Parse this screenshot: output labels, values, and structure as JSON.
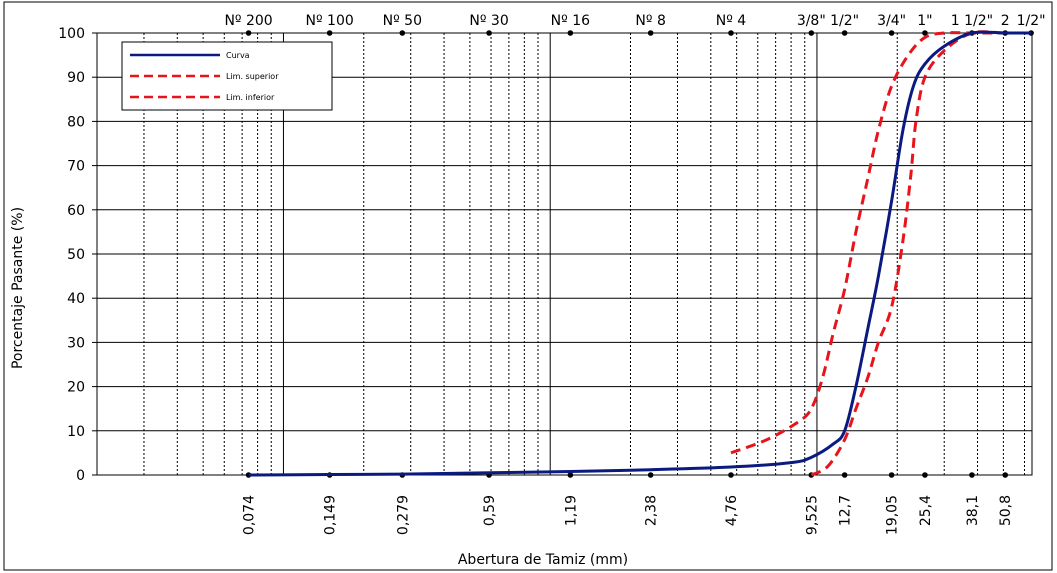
{
  "chart_data": {
    "type": "line",
    "title": "",
    "xlabel": "Abertura de Tamiz (mm)",
    "ylabel": "Porcentaje Pasante (%)",
    "x_scale": "log",
    "xlim": [
      0.02,
      64
    ],
    "ylim": [
      0,
      100
    ],
    "y_ticks": [
      0,
      10,
      20,
      30,
      40,
      50,
      60,
      70,
      80,
      90,
      100
    ],
    "grid": true,
    "legend_position": "top-left",
    "sieve_sizes": [
      0.074,
      0.149,
      0.279,
      0.59,
      1.19,
      2.38,
      4.76,
      9.525,
      12.7,
      19.05,
      25.4,
      38.1,
      50.8
    ],
    "bottom_labels": [
      "0,074",
      "0,149",
      "0,279",
      "0,59",
      "1,19",
      "2,38",
      "4,76",
      "9,525",
      "12,7",
      "19,05",
      "25,4",
      "38,1",
      "50,8"
    ],
    "top_labels": [
      {
        "label": "Nº 200",
        "x": 0.074
      },
      {
        "label": "Nº 100",
        "x": 0.149
      },
      {
        "label": "Nº 50",
        "x": 0.279
      },
      {
        "label": "Nº 30",
        "x": 0.59
      },
      {
        "label": "Nº 16",
        "x": 1.19
      },
      {
        "label": "Nº 8",
        "x": 2.38
      },
      {
        "label": "Nº 4",
        "x": 4.76
      },
      {
        "label": "3/8\"",
        "x": 9.525
      },
      {
        "label": "1/2\"",
        "x": 12.7
      },
      {
        "label": "3/4\"",
        "x": 19.05
      },
      {
        "label": "1\"",
        "x": 25.4
      },
      {
        "label": "1 1/2\"",
        "x": 38.1
      },
      {
        "label": "2",
        "x": 50.8
      },
      {
        "label": "1/2\"",
        "x": 63.5
      }
    ],
    "top_marker_x": [
      0.074,
      0.149,
      0.279,
      0.59,
      1.19,
      2.38,
      4.76,
      9.525,
      12.7,
      19.05,
      25.4,
      38.1,
      50.8,
      63.5
    ],
    "series": [
      {
        "name": "Curva",
        "color": "#0b1a80",
        "dash": "solid",
        "points": [
          [
            0.074,
            0
          ],
          [
            0.149,
            0.1
          ],
          [
            0.279,
            0.2
          ],
          [
            0.59,
            0.5
          ],
          [
            1.19,
            0.8
          ],
          [
            2.38,
            1.2
          ],
          [
            4.76,
            1.8
          ],
          [
            8.0,
            2.8
          ],
          [
            9.525,
            4
          ],
          [
            11.5,
            7
          ],
          [
            12.7,
            10
          ],
          [
            14.0,
            20
          ],
          [
            15.5,
            33
          ],
          [
            17.0,
            45
          ],
          [
            19.05,
            62
          ],
          [
            21.0,
            78
          ],
          [
            23.0,
            88
          ],
          [
            25.4,
            93
          ],
          [
            30.0,
            97
          ],
          [
            38.1,
            100
          ],
          [
            50.8,
            100
          ],
          [
            63.5,
            100
          ]
        ]
      },
      {
        "name": "Lim. superior",
        "color": "#e8141c",
        "dash": "dashed",
        "points": [
          [
            4.76,
            5
          ],
          [
            6.5,
            8
          ],
          [
            8.5,
            12
          ],
          [
            9.525,
            15
          ],
          [
            10.5,
            22
          ],
          [
            11.5,
            32
          ],
          [
            12.7,
            42
          ],
          [
            14.0,
            55
          ],
          [
            15.5,
            67
          ],
          [
            17.0,
            78
          ],
          [
            19.05,
            88
          ],
          [
            22.0,
            95
          ],
          [
            25.4,
            99
          ],
          [
            30.0,
            100
          ],
          [
            38.1,
            100
          ],
          [
            50.8,
            100
          ],
          [
            63.5,
            100
          ]
        ]
      },
      {
        "name": "Lim. inferior",
        "color": "#e8141c",
        "dash": "dashed",
        "points": [
          [
            9.525,
            0
          ],
          [
            11.0,
            2
          ],
          [
            12.7,
            8
          ],
          [
            14.0,
            15
          ],
          [
            15.5,
            22
          ],
          [
            17.0,
            30
          ],
          [
            19.05,
            38
          ],
          [
            21.0,
            53
          ],
          [
            22.5,
            68
          ],
          [
            23.5,
            80
          ],
          [
            25.4,
            90
          ],
          [
            30.0,
            96
          ],
          [
            38.1,
            100
          ],
          [
            50.8,
            100
          ],
          [
            63.5,
            100
          ]
        ]
      }
    ]
  }
}
